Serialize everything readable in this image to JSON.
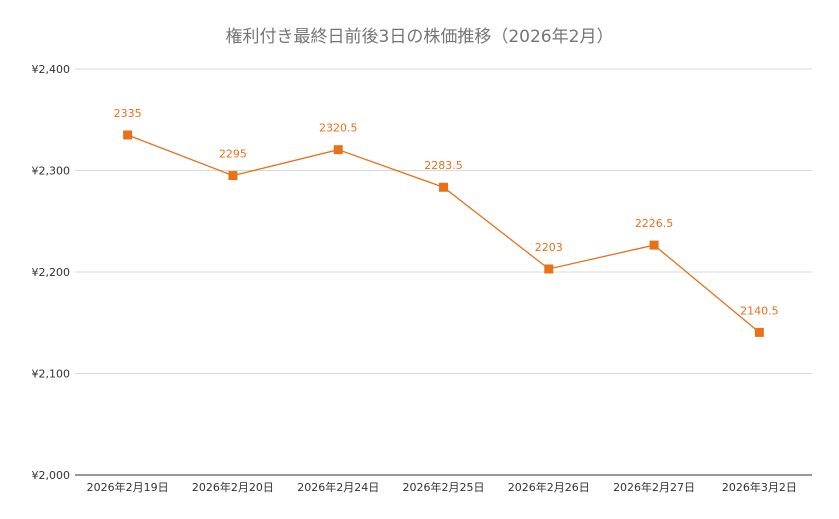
{
  "chart_data": {
    "type": "line",
    "title": "権利付き最終日前後3日の株価推移（2026年2月）",
    "xlabel": "",
    "ylabel": "",
    "categories": [
      "2026年2月19日",
      "2026年2月20日",
      "2026年2月24日",
      "2026年2月25日",
      "2026年2月26日",
      "2026年2月27日",
      "2026年3月2日"
    ],
    "series": [
      {
        "values": [
          2335,
          2295,
          2320.5,
          2283.5,
          2203,
          2226.5,
          2140.5
        ],
        "labels": [
          "2335",
          "2295",
          "2320.5",
          "2283.5",
          "2203",
          "2226.5",
          "2140.5"
        ]
      }
    ],
    "ylim": [
      2000,
      2400
    ],
    "yticks": [
      2000,
      2100,
      2200,
      2300,
      2400
    ],
    "ytick_labels": [
      "¥2,000",
      "¥2,100",
      "¥2,200",
      "¥2,300",
      "¥2,400"
    ],
    "grid": true,
    "legend": "none",
    "colors": {
      "series": "#e8711a",
      "grid": "#d9d9d9",
      "title": "#757575"
    }
  }
}
